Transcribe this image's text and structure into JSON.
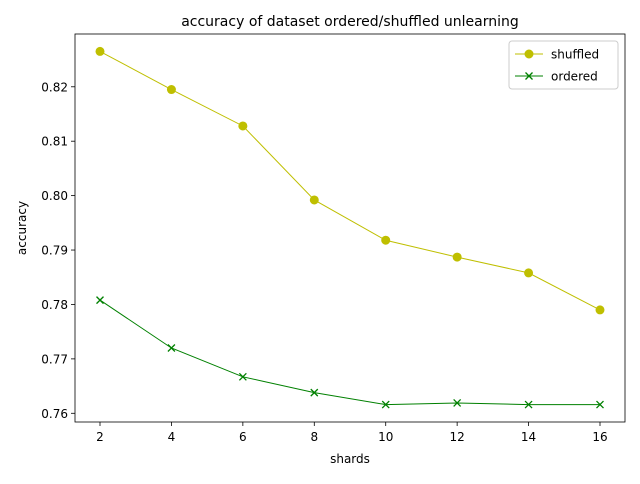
{
  "chart_data": {
    "type": "line",
    "title": "accuracy of dataset ordered/shuffled unlearning",
    "xlabel": "shards",
    "ylabel": "accuracy",
    "x": [
      2,
      4,
      6,
      8,
      10,
      12,
      14,
      16
    ],
    "xlim": [
      1.3,
      16.7
    ],
    "ylim": [
      0.7584,
      0.8297
    ],
    "xticks": [
      2,
      4,
      6,
      8,
      10,
      12,
      14,
      16
    ],
    "yticks": [
      0.76,
      0.77,
      0.78,
      0.79,
      0.8,
      0.81,
      0.82
    ],
    "ytick_labels": [
      "0.76",
      "0.77",
      "0.78",
      "0.79",
      "0.80",
      "0.81",
      "0.82"
    ],
    "grid": false,
    "legend_position": "top-right",
    "series": [
      {
        "name": "shuffled",
        "color": "#bfbf00",
        "marker": "circle",
        "values": [
          0.8265,
          0.8195,
          0.8128,
          0.7992,
          0.7918,
          0.7887,
          0.7858,
          0.779
        ]
      },
      {
        "name": "ordered",
        "color": "#008000",
        "marker": "x",
        "values": [
          0.7808,
          0.772,
          0.7667,
          0.7638,
          0.7616,
          0.7619,
          0.7616,
          0.7616
        ]
      }
    ]
  }
}
